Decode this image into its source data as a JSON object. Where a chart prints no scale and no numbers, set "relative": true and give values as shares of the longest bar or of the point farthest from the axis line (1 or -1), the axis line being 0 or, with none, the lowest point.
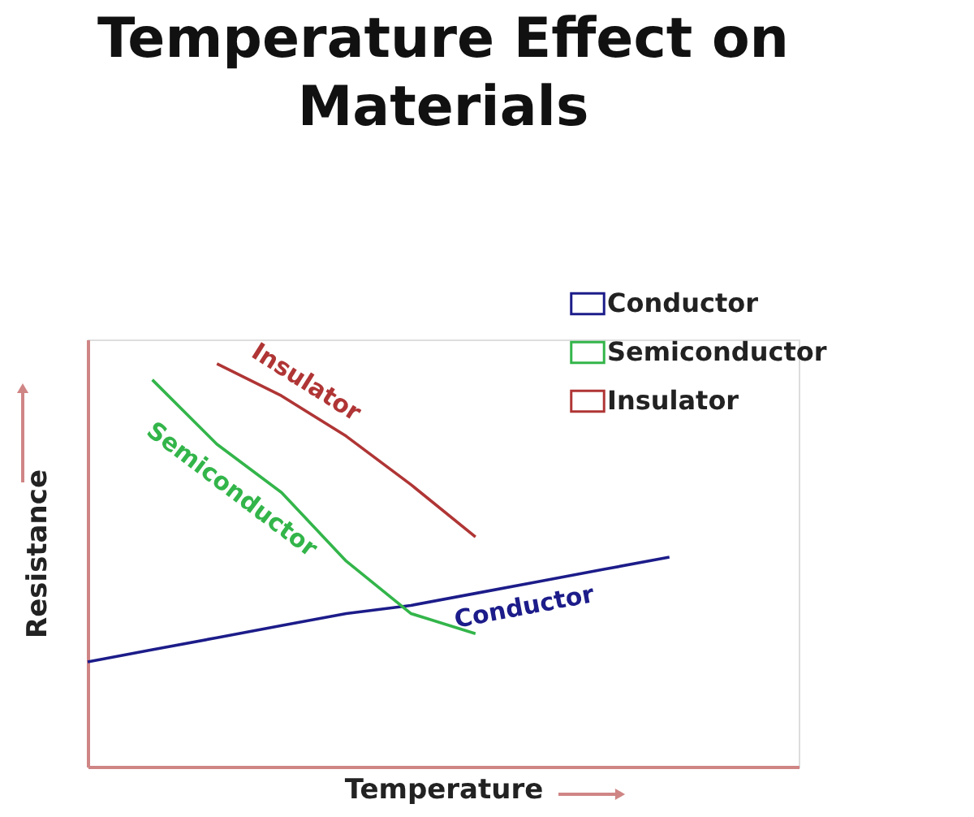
{
  "chart_data": {
    "type": "line",
    "title": "Temperature Effect on Materials",
    "xlabel": "Temperature",
    "ylabel": "Resistance",
    "relative": true,
    "tick_labels": false,
    "grid": false,
    "legend": "top right",
    "marker": "none",
    "line_style": "solid",
    "categories": [
      null,
      null,
      null,
      null,
      null,
      null,
      null,
      null,
      null,
      null
    ],
    "series": [
      {
        "name": "Conductor",
        "color": "#1c1c8a",
        "values": [
          0.26,
          0.29,
          0.32,
          0.35,
          0.38,
          0.4,
          0.43,
          0.46,
          0.49,
          0.52
        ]
      },
      {
        "name": "Semiconductor",
        "color": "#33b54a",
        "values": [
          null,
          0.96,
          0.8,
          0.68,
          0.51,
          0.38,
          0.33,
          null,
          null,
          null
        ]
      },
      {
        "name": "Insulator",
        "color": "#b03535",
        "values": [
          null,
          null,
          1.0,
          0.92,
          0.82,
          0.7,
          0.57,
          null,
          null,
          null
        ]
      }
    ]
  }
}
